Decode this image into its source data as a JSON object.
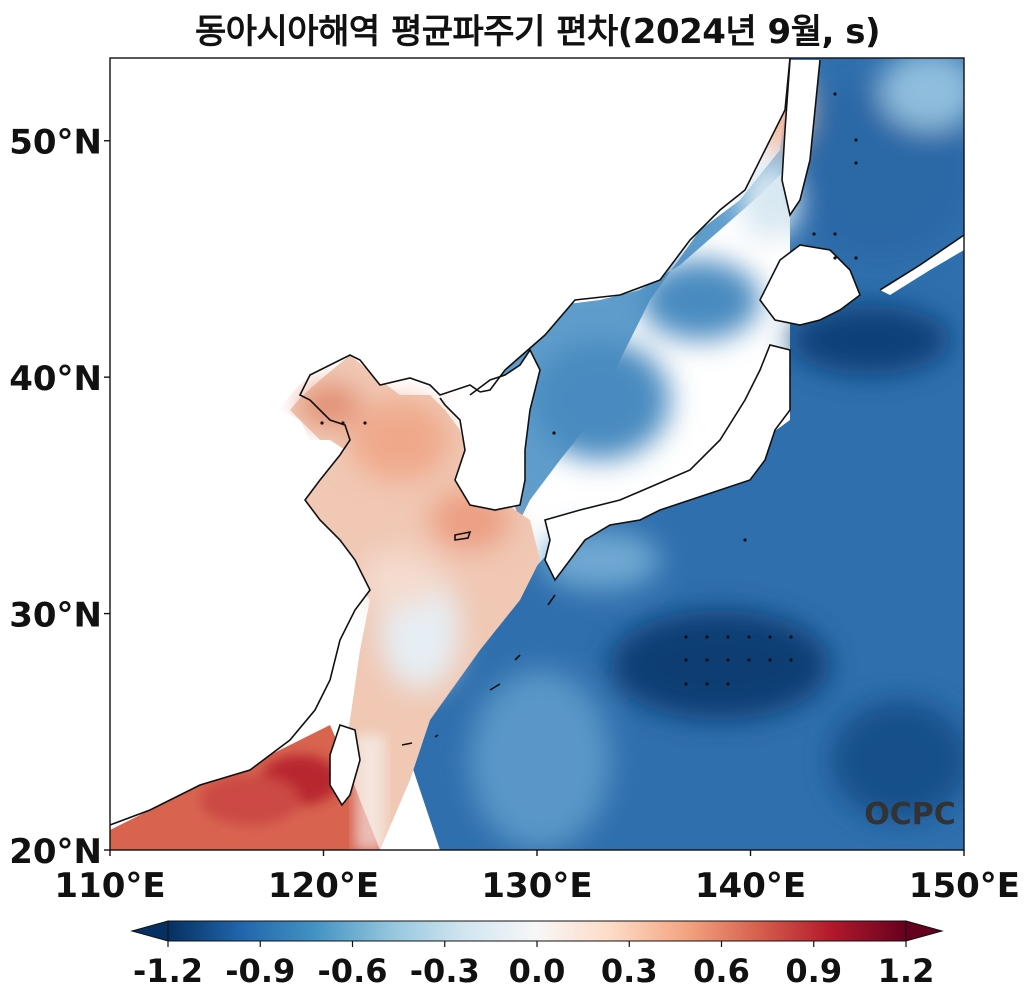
{
  "title": "동아시아해역 평균파주기 편차(2024년 9월, s)",
  "watermark": "OCPC",
  "map": {
    "lon_range": [
      110,
      150
    ],
    "lat_range": [
      20,
      53.5
    ],
    "lat_ticks": [
      {
        "value": 50,
        "label": "50°N"
      },
      {
        "value": 40,
        "label": "40°N"
      },
      {
        "value": 30,
        "label": "30°N"
      },
      {
        "value": 20,
        "label": "20°N"
      }
    ],
    "lon_ticks": [
      {
        "value": 110,
        "label": "110°E"
      },
      {
        "value": 120,
        "label": "120°E"
      },
      {
        "value": 130,
        "label": "130°E"
      },
      {
        "value": 140,
        "label": "140°E"
      },
      {
        "value": 150,
        "label": "150°E"
      }
    ]
  },
  "colorbar": {
    "colormap": "RdBu_r",
    "extend": "both",
    "range": [
      -1.2,
      1.2
    ],
    "ticks": [
      "-1.2",
      "-0.9",
      "-0.6",
      "-0.3",
      "0.0",
      "0.3",
      "0.6",
      "0.9",
      "1.2"
    ],
    "colors": [
      "#053061",
      "#2166ac",
      "#4393c3",
      "#92c5de",
      "#d1e5f0",
      "#f7f7f7",
      "#fddbc7",
      "#f4a582",
      "#d6604d",
      "#b2182b",
      "#67001f"
    ]
  }
}
